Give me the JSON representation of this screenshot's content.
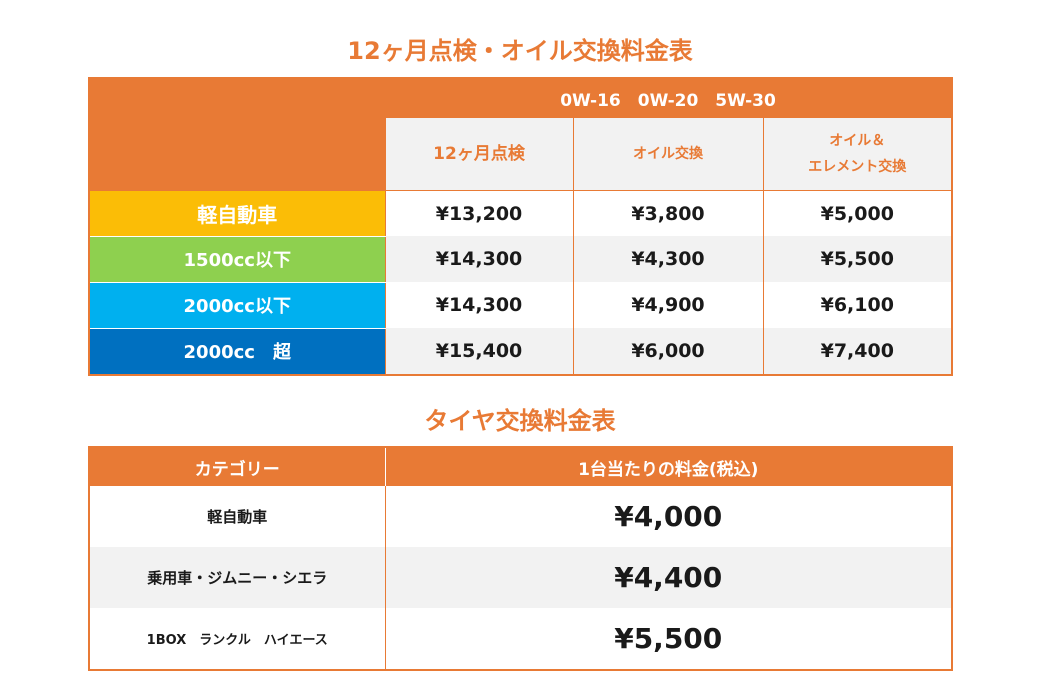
{
  "maintenance": {
    "title": "12ヶ月点検・オイル交換料金表",
    "oil_grades": "0W-16　0W-20　5W-30",
    "columns": [
      "12ヶ月点検",
      "オイル交換",
      "オイル＆",
      "エレメント交換"
    ],
    "rows": [
      {
        "category": "軽自動車",
        "inspection": "¥13,200",
        "oil": "¥3,800",
        "oil_element": "¥5,000",
        "color": "#fbbd06"
      },
      {
        "category": "1500cc以下",
        "inspection": "¥14,300",
        "oil": "¥4,300",
        "oil_element": "¥5,500",
        "color": "#8ed04f"
      },
      {
        "category": "2000cc以下",
        "inspection": "¥14,300",
        "oil": "¥4,900",
        "oil_element": "¥6,100",
        "color": "#00b0ef"
      },
      {
        "category": "2000cc　超",
        "inspection": "¥15,400",
        "oil": "¥6,000",
        "oil_element": "¥7,400",
        "color": "#0070c0"
      }
    ]
  },
  "tire": {
    "title": "タイヤ交換料金表",
    "headers": [
      "カテゴリー",
      "1台当たりの料金(税込)"
    ],
    "rows": [
      {
        "category": "軽自動車",
        "price": "¥4,000"
      },
      {
        "category": "乗用車・ジムニー・シエラ",
        "price": "¥4,400"
      },
      {
        "category": "1BOX　ランクル　ハイエース",
        "price": "¥5,500"
      }
    ]
  },
  "accent_color": "#e87a35"
}
